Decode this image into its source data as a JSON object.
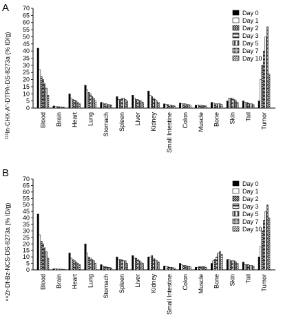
{
  "chart_data": [
    {
      "type": "bar",
      "panel_label": "A",
      "ylabel": "¹¹¹In-CHX-A\"-DTPA-DS-8273a  (% ID/g)",
      "ylim": [
        0,
        70
      ],
      "yticks": [
        0,
        5,
        10,
        15,
        20,
        25,
        30,
        35,
        40,
        45,
        50,
        55,
        60,
        65,
        70
      ],
      "categories": [
        "Blood",
        "Brain",
        "Heart",
        "Lung",
        "Stomach",
        "Spleen",
        "Liver",
        "Kidney",
        "Small Intestine",
        "Colon",
        "Muscle",
        "Bone",
        "Skin",
        "Tail",
        "Tumor"
      ],
      "legend_position": "top-right",
      "grid": false,
      "series": [
        {
          "name": "Day 0",
          "values": [
            42,
            1.5,
            10,
            16,
            4,
            8,
            9,
            12,
            3,
            3.5,
            2,
            4,
            5,
            5,
            5
          ]
        },
        {
          "name": "Day 1",
          "values": [
            27,
            1.2,
            7,
            13,
            3.5,
            6,
            7,
            9,
            2.5,
            3,
            2,
            3.5,
            7,
            4,
            20
          ]
        },
        {
          "name": "Day 2",
          "values": [
            22,
            1,
            6,
            11,
            3,
            6,
            6,
            8,
            2.5,
            3,
            2,
            3,
            7,
            4,
            30
          ]
        },
        {
          "name": "Day 3",
          "values": [
            20,
            1,
            5.5,
            10,
            3,
            7,
            6,
            7,
            2,
            3,
            2,
            3,
            7,
            3.5,
            40
          ]
        },
        {
          "name": "Day 5",
          "values": [
            17,
            0.9,
            5,
            8,
            2.5,
            7,
            5.5,
            6,
            2,
            2.5,
            1.8,
            3,
            6,
            3,
            50
          ]
        },
        {
          "name": "Day 7",
          "values": [
            14,
            0.8,
            4,
            7,
            2.5,
            6,
            5,
            5,
            1.8,
            2.5,
            1.7,
            3,
            5,
            3,
            57
          ]
        },
        {
          "name": "Day 10",
          "values": [
            9,
            0.7,
            3,
            5,
            2,
            5,
            4,
            4,
            1.5,
            2,
            1.5,
            2.5,
            4,
            2.5,
            24
          ]
        }
      ]
    },
    {
      "type": "bar",
      "panel_label": "B",
      "ylabel": "⁸⁹Zr-Df-Bz-NCS-DS-8273a  (% ID/g)",
      "ylim": [
        0,
        70
      ],
      "yticks": [
        0,
        5,
        10,
        15,
        20,
        25,
        30,
        35,
        40,
        45,
        50,
        55,
        60,
        65,
        70
      ],
      "categories": [
        "Blood",
        "Brain",
        "Heart",
        "Lung",
        "Stomach",
        "Spleen",
        "Liver",
        "Kidney",
        "Small Intestine",
        "Colon",
        "Muscle",
        "Bone",
        "Skin",
        "Tail",
        "Tumor"
      ],
      "legend_position": "top-right",
      "grid": false,
      "series": [
        {
          "name": "Day 0",
          "values": [
            43,
            0.8,
            13,
            20,
            4,
            10,
            11,
            10,
            3,
            5,
            2,
            5,
            8,
            6,
            10
          ]
        },
        {
          "name": "Day 1",
          "values": [
            27,
            0.7,
            9,
            13,
            3,
            8,
            9,
            10,
            2.5,
            4,
            2,
            7,
            8,
            4,
            18
          ]
        },
        {
          "name": "Day 2",
          "values": [
            22,
            0.7,
            8,
            10,
            2.5,
            8,
            9,
            11,
            2.5,
            3.5,
            2.5,
            8,
            7,
            4,
            30
          ]
        },
        {
          "name": "Day 3",
          "values": [
            20,
            0.6,
            7,
            9,
            2.5,
            8,
            8,
            9,
            2,
            3.5,
            2.5,
            10,
            7,
            4,
            38
          ]
        },
        {
          "name": "Day 5",
          "values": [
            17,
            0.6,
            6,
            8,
            2,
            7,
            7,
            8,
            2,
            3,
            2.5,
            13,
            7,
            3.5,
            45
          ]
        },
        {
          "name": "Day 7",
          "values": [
            14,
            0.5,
            5,
            7,
            2,
            7,
            6,
            7,
            1.8,
            3,
            2.5,
            14,
            6,
            3.5,
            50
          ]
        },
        {
          "name": "Day 10",
          "values": [
            9,
            0.5,
            4,
            5,
            1.5,
            5,
            5,
            6,
            1.5,
            2.5,
            2,
            12,
            5,
            3,
            40
          ]
        }
      ]
    }
  ]
}
